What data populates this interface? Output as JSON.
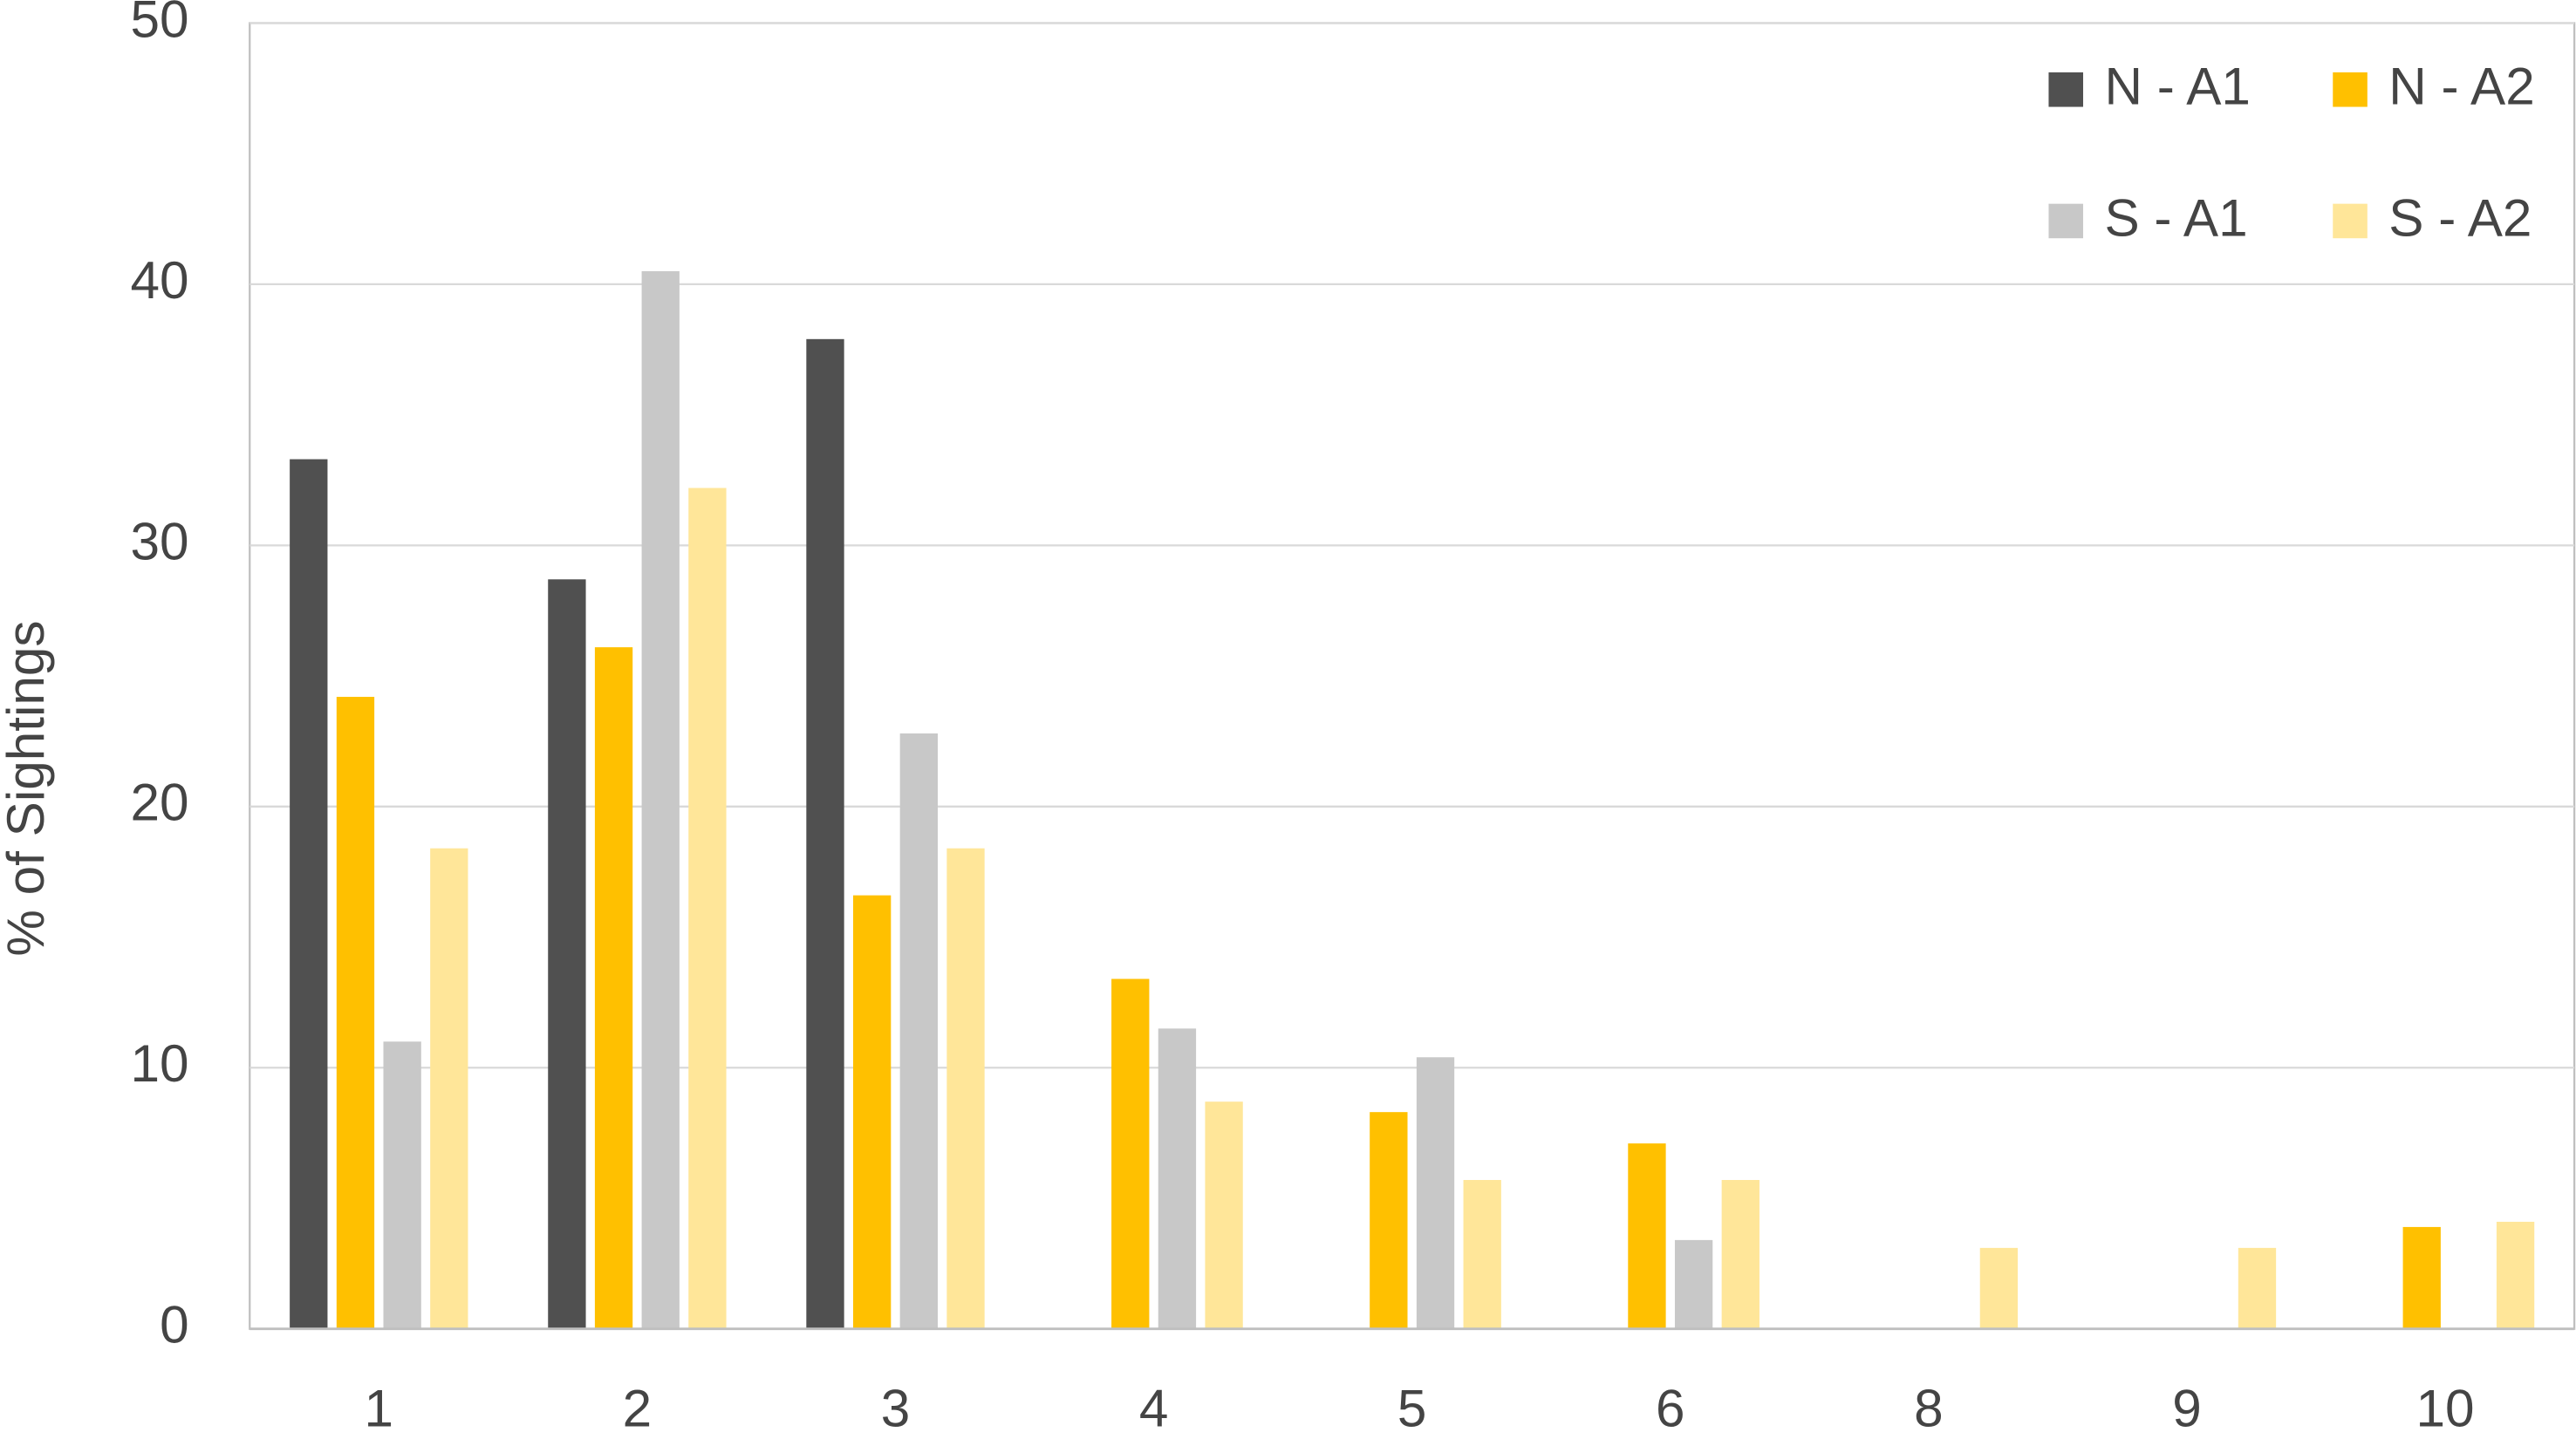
{
  "chart_data": {
    "type": "bar",
    "y_label": "% of Sightings",
    "categories": [
      "1",
      "2",
      "3",
      "4",
      "5",
      "6",
      "8",
      "9",
      "10"
    ],
    "series": [
      {
        "name": "N - A1",
        "color": "#505050",
        "values": [
          33.3,
          28.7,
          37.9,
          0,
          0,
          0,
          0,
          0,
          0
        ]
      },
      {
        "name": "N - A2",
        "color": "#ffc000",
        "values": [
          24.2,
          26.1,
          16.6,
          13.4,
          8.3,
          7.1,
          0,
          0,
          3.9
        ]
      },
      {
        "name": "S - A1",
        "color": "#c8c8c8",
        "values": [
          11.0,
          40.5,
          22.8,
          11.5,
          10.4,
          3.4,
          0,
          0,
          0
        ]
      },
      {
        "name": "S - A2",
        "color": "#ffe699",
        "values": [
          18.4,
          32.2,
          18.4,
          8.7,
          5.7,
          5.7,
          3.1,
          3.1,
          4.1
        ]
      }
    ],
    "ylim": [
      0,
      50
    ],
    "yticks": [
      0,
      10,
      20,
      30,
      40,
      50
    ],
    "grid": true,
    "legend": "top-right"
  }
}
